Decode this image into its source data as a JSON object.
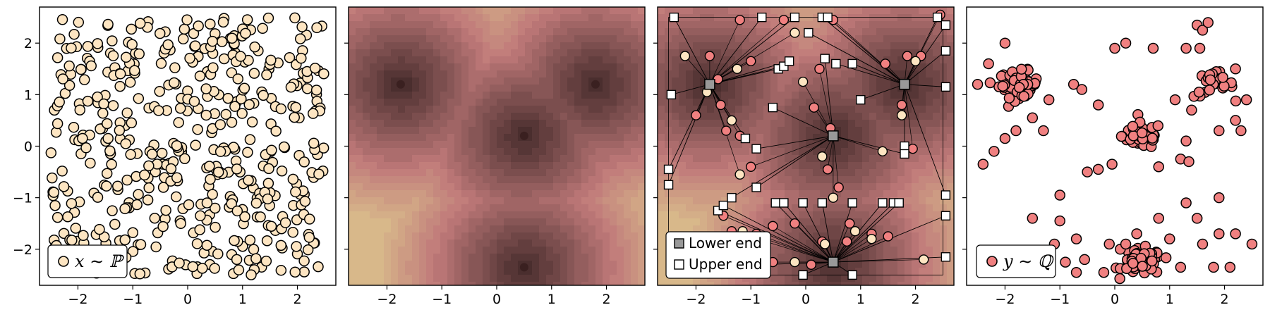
{
  "chart_data": [
    {
      "type": "scatter",
      "panel": "source-samples",
      "xlim": [
        -2.7,
        2.7
      ],
      "ylim": [
        -2.7,
        2.7
      ],
      "xticks": [
        "−2",
        "−1",
        "0",
        "1",
        "2"
      ],
      "yticks": [
        "−2",
        "−1",
        "0",
        "1",
        "2"
      ],
      "grid": false,
      "legend": {
        "placement": "lower-left",
        "entries": [
          {
            "label": "x ∼ ℙ",
            "marker": "circle"
          }
        ]
      },
      "points": {
        "distribution": "uniform",
        "count": 480,
        "xrange": [
          -2.5,
          2.5
        ],
        "yrange": [
          -2.5,
          2.5
        ]
      },
      "colors": {
        "fill": "#fde5c2",
        "edge": "#000000"
      }
    },
    {
      "type": "heatmap",
      "panel": "potential",
      "xlim": [
        -2.7,
        2.7
      ],
      "ylim": [
        -2.7,
        2.7
      ],
      "xticks": [
        "−2",
        "−1",
        "0",
        "1",
        "2"
      ],
      "grid": false,
      "centers": [
        [
          -1.75,
          1.2
        ],
        [
          1.8,
          1.2
        ],
        [
          0.5,
          0.2
        ],
        [
          0.5,
          -2.35
        ]
      ],
      "levels": 16,
      "colors": {
        "low": "#4a2e2e",
        "mid": "#c07a7a",
        "high": "#d8b88a"
      }
    },
    {
      "type": "scatter",
      "panel": "transport",
      "xlim": [
        -2.7,
        2.7
      ],
      "ylim": [
        -2.7,
        2.7
      ],
      "xticks": [
        "−2",
        "−1",
        "0",
        "1",
        "2"
      ],
      "grid": false,
      "centers": [
        [
          -1.75,
          1.2
        ],
        [
          1.8,
          1.2
        ],
        [
          0.5,
          0.2
        ],
        [
          0.5,
          -2.25
        ]
      ],
      "box": [
        -2.5,
        2.5
      ],
      "legend": {
        "placement": "lower-left",
        "entries": [
          {
            "label": "Lower end",
            "marker": "square-gray"
          },
          {
            "label": "Upper end",
            "marker": "square-white"
          }
        ]
      },
      "upper_ends": [
        [
          -2.4,
          2.5
        ],
        [
          -0.8,
          2.5
        ],
        [
          -0.2,
          2.5
        ],
        [
          0.3,
          2.5
        ],
        [
          0.4,
          2.5
        ],
        [
          2.4,
          2.5
        ],
        [
          -2.45,
          1.0
        ],
        [
          -2.5,
          -0.45
        ],
        [
          -2.5,
          -0.75
        ],
        [
          -2.2,
          -2.35
        ],
        [
          -1.6,
          -1.25
        ],
        [
          -1.5,
          -1.15
        ],
        [
          -1.35,
          -1.0
        ],
        [
          -0.9,
          -0.8
        ],
        [
          -1.1,
          0.15
        ],
        [
          -0.9,
          -0.05
        ],
        [
          -0.6,
          0.75
        ],
        [
          -0.5,
          1.5
        ],
        [
          -0.4,
          1.55
        ],
        [
          -0.3,
          1.65
        ],
        [
          0.05,
          2.2
        ],
        [
          0.35,
          1.7
        ],
        [
          0.55,
          1.6
        ],
        [
          0.85,
          1.6
        ],
        [
          1.0,
          0.9
        ],
        [
          1.8,
          0.0
        ],
        [
          1.8,
          -0.15
        ],
        [
          2.55,
          2.35
        ],
        [
          2.55,
          1.85
        ],
        [
          2.55,
          1.15
        ],
        [
          2.55,
          -0.95
        ],
        [
          2.55,
          -1.35
        ],
        [
          2.55,
          -2.15
        ],
        [
          -0.55,
          -1.1
        ],
        [
          -0.4,
          -1.1
        ],
        [
          -0.05,
          -1.1
        ],
        [
          0.3,
          -1.1
        ],
        [
          0.85,
          -1.1
        ],
        [
          1.4,
          -1.1
        ],
        [
          1.6,
          -1.1
        ],
        [
          1.7,
          -1.1
        ],
        [
          -0.05,
          -2.5
        ],
        [
          0.85,
          -2.5
        ]
      ],
      "lower_ends": [
        [
          -1.75,
          1.2
        ],
        [
          1.8,
          1.2
        ],
        [
          0.5,
          0.2
        ],
        [
          0.5,
          -2.25
        ]
      ],
      "mid_points": [
        [
          -2.2,
          1.75
        ],
        [
          -1.75,
          1.75
        ],
        [
          -1.0,
          1.65
        ],
        [
          -1.25,
          1.5
        ],
        [
          -1.6,
          1.3
        ],
        [
          -1.55,
          0.8
        ],
        [
          -1.8,
          1.05
        ],
        [
          -2.0,
          0.6
        ],
        [
          -1.45,
          0.3
        ],
        [
          -1.35,
          0.5
        ],
        [
          -1.2,
          0.2
        ],
        [
          -1.0,
          -0.4
        ],
        [
          -1.2,
          -0.55
        ],
        [
          -1.5,
          -1.35
        ],
        [
          -1.35,
          -1.65
        ],
        [
          -1.15,
          -1.65
        ],
        [
          -0.9,
          -1.7
        ],
        [
          -0.6,
          -2.25
        ],
        [
          -0.2,
          -2.25
        ],
        [
          0.1,
          -2.3
        ],
        [
          0.3,
          -1.85
        ],
        [
          0.35,
          -1.9
        ],
        [
          0.8,
          -1.5
        ],
        [
          0.75,
          -1.85
        ],
        [
          0.9,
          -1.65
        ],
        [
          1.2,
          -1.7
        ],
        [
          1.5,
          -1.75
        ],
        [
          2.15,
          -2.2
        ],
        [
          -0.6,
          -1.55
        ],
        [
          -0.2,
          -1.5
        ],
        [
          0.5,
          -1.0
        ],
        [
          0.6,
          -0.8
        ],
        [
          0.4,
          -0.45
        ],
        [
          0.3,
          -0.2
        ],
        [
          0.15,
          0.75
        ],
        [
          0.45,
          0.35
        ],
        [
          1.4,
          -0.1
        ],
        [
          1.95,
          -0.05
        ],
        [
          1.75,
          0.8
        ],
        [
          1.75,
          0.6
        ],
        [
          1.85,
          1.75
        ],
        [
          2.1,
          1.75
        ],
        [
          2.0,
          1.65
        ],
        [
          1.45,
          1.6
        ],
        [
          0.25,
          1.5
        ],
        [
          -0.05,
          1.25
        ],
        [
          2.45,
          2.55
        ],
        [
          -0.4,
          2.45
        ],
        [
          -0.2,
          2.2
        ],
        [
          0.5,
          2.45
        ],
        [
          -1.2,
          2.45
        ],
        [
          1.2,
          -1.8
        ]
      ],
      "colors": {
        "point_fill": "#f08080",
        "point_fill_light": "#fde5c2",
        "lower_fill": "#999999",
        "upper_fill": "#ffffff",
        "edge": "#000000"
      }
    },
    {
      "type": "scatter",
      "panel": "target-samples",
      "xlim": [
        -2.7,
        2.7
      ],
      "ylim": [
        -2.7,
        2.7
      ],
      "xticks": [
        "−2",
        "−1",
        "0",
        "1",
        "2"
      ],
      "grid": false,
      "legend": {
        "placement": "lower-left",
        "entries": [
          {
            "label": "y ∼ ℚ",
            "marker": "circle"
          }
        ]
      },
      "clusters": [
        {
          "center": [
            -1.75,
            1.2
          ],
          "count": 70
        },
        {
          "center": [
            1.8,
            1.2
          ],
          "count": 25
        },
        {
          "center": [
            0.5,
            0.2
          ],
          "count": 55
        },
        {
          "center": [
            0.5,
            -2.25
          ],
          "count": 70
        }
      ],
      "scatter": [
        [
          -2.5,
          1.2
        ],
        [
          -2.0,
          2.0
        ],
        [
          -2.3,
          1.6
        ],
        [
          -2.4,
          -0.35
        ],
        [
          -1.5,
          -1.4
        ],
        [
          -1.2,
          0.9
        ],
        [
          -1.3,
          0.3
        ],
        [
          -0.75,
          1.2
        ],
        [
          -0.7,
          -1.8
        ],
        [
          -0.6,
          1.1
        ],
        [
          -0.3,
          0.8
        ],
        [
          -0.1,
          -1.9
        ],
        [
          0.0,
          1.9
        ],
        [
          0.2,
          2.0
        ],
        [
          0.7,
          1.9
        ],
        [
          1.3,
          1.9
        ],
        [
          1.5,
          2.35
        ],
        [
          1.6,
          2.25
        ],
        [
          1.7,
          2.4
        ],
        [
          1.55,
          1.9
        ],
        [
          2.2,
          1.5
        ],
        [
          2.4,
          0.9
        ],
        [
          2.3,
          0.3
        ],
        [
          1.9,
          0.3
        ],
        [
          2.2,
          0.5
        ],
        [
          1.1,
          0.9
        ],
        [
          1.4,
          0.7
        ],
        [
          1.2,
          -0.25
        ],
        [
          1.35,
          -0.3
        ],
        [
          1.3,
          0.1
        ],
        [
          -0.5,
          -0.5
        ],
        [
          -0.3,
          -0.45
        ],
        [
          -0.05,
          -0.35
        ],
        [
          0.8,
          -0.4
        ],
        [
          -1.0,
          -0.95
        ],
        [
          -1.0,
          -1.45
        ],
        [
          -1.1,
          -1.9
        ],
        [
          -0.9,
          -2.25
        ],
        [
          -0.7,
          -2.45
        ],
        [
          -0.55,
          -2.2
        ],
        [
          -0.2,
          -2.45
        ],
        [
          0.1,
          -2.0
        ],
        [
          0.2,
          -1.9
        ],
        [
          0.4,
          -1.7
        ],
        [
          0.8,
          -1.4
        ],
        [
          1.0,
          -1.8
        ],
        [
          1.5,
          -1.4
        ],
        [
          1.6,
          -1.9
        ],
        [
          1.9,
          -1.7
        ],
        [
          2.2,
          -1.7
        ],
        [
          2.1,
          -2.35
        ],
        [
          2.5,
          -1.9
        ],
        [
          1.9,
          -1.0
        ],
        [
          1.3,
          -1.1
        ],
        [
          1.8,
          -2.35
        ],
        [
          1.2,
          -2.35
        ],
        [
          -1.8,
          0.3
        ],
        [
          -2.0,
          0.15
        ],
        [
          -1.5,
          0.55
        ],
        [
          -2.2,
          -0.1
        ]
      ],
      "colors": {
        "fill": "#f08080",
        "edge": "#000000"
      }
    }
  ],
  "legends": {
    "source": {
      "label": "x ∼ ℙ"
    },
    "transport": {
      "lower": "Lower end",
      "upper": "Upper end"
    },
    "target": {
      "label": "y ∼ ℚ"
    }
  },
  "ticks": {
    "values": [
      -2,
      -1,
      0,
      1,
      2
    ],
    "labels": [
      "−2",
      "−1",
      "0",
      "1",
      "2"
    ]
  }
}
